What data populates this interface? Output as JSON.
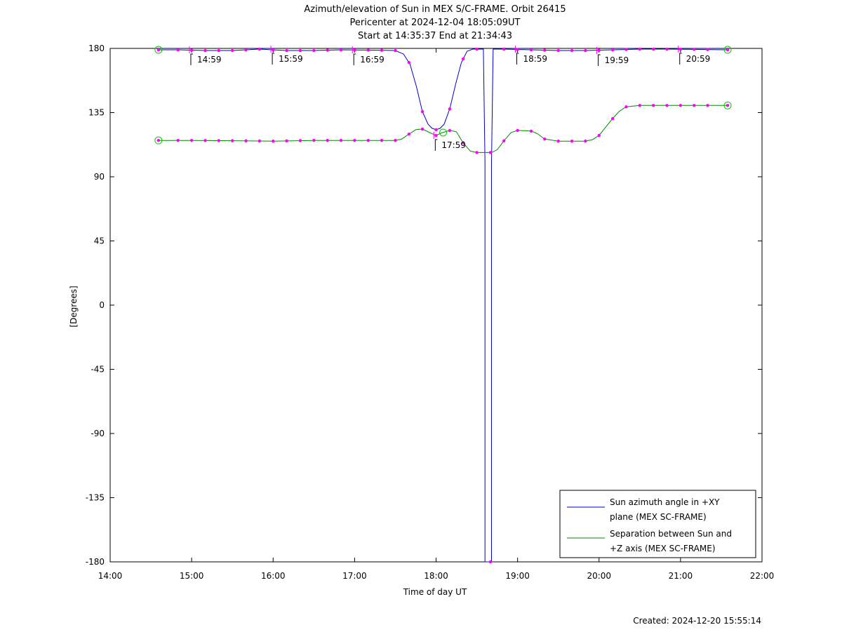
{
  "chart_data": {
    "type": "line",
    "title_lines": [
      "Azimuth/elevation of Sun in MEX S/C-FRAME.  Orbit 26415",
      "Pericenter at 2024-12-04 18:05:09UT",
      "Start at 14:35:37 End at 21:34:43"
    ],
    "xlabel": "Time of day UT",
    "ylabel": "[Degrees]",
    "xlim": [
      14.0,
      22.0
    ],
    "ylim": [
      -180,
      180
    ],
    "x_ticks": [
      {
        "v": 14,
        "label": "14:00"
      },
      {
        "v": 15,
        "label": "15:00"
      },
      {
        "v": 16,
        "label": "16:00"
      },
      {
        "v": 17,
        "label": "17:00"
      },
      {
        "v": 18,
        "label": "18:00"
      },
      {
        "v": 19,
        "label": "19:00"
      },
      {
        "v": 20,
        "label": "20:00"
      },
      {
        "v": 21,
        "label": "21:00"
      },
      {
        "v": 22,
        "label": "22:00"
      }
    ],
    "y_ticks": [
      {
        "v": 180,
        "label": "180"
      },
      {
        "v": 135,
        "label": "135"
      },
      {
        "v": 90,
        "label": "90"
      },
      {
        "v": 45,
        "label": "45"
      },
      {
        "v": 0,
        "label": "0"
      },
      {
        "v": -45,
        "label": "-45"
      },
      {
        "v": -90,
        "label": "-90"
      },
      {
        "v": -135,
        "label": "-135"
      },
      {
        "v": -180,
        "label": "-180"
      }
    ],
    "legend_position": "bottom-right",
    "series": [
      {
        "name": "Sun azimuth angle in +XY plane (MEX SC-FRAME)",
        "legend_lines": [
          "Sun azimuth angle in +XY",
          "plane (MEX SC-FRAME)"
        ],
        "color": "#0000cc",
        "points": [
          [
            14.593,
            179
          ],
          [
            14.83,
            179
          ],
          [
            15.17,
            178.5
          ],
          [
            15.5,
            178.5
          ],
          [
            15.83,
            179.5
          ],
          [
            16.17,
            178.5
          ],
          [
            16.5,
            178.5
          ],
          [
            16.83,
            179
          ],
          [
            17.17,
            178.8
          ],
          [
            17.5,
            178.5
          ],
          [
            17.6,
            176
          ],
          [
            17.68,
            169
          ],
          [
            17.76,
            153
          ],
          [
            17.83,
            136
          ],
          [
            17.9,
            127
          ],
          [
            17.95,
            124
          ],
          [
            18.0,
            123
          ],
          [
            18.05,
            124
          ],
          [
            18.1,
            127
          ],
          [
            18.17,
            138
          ],
          [
            18.24,
            155
          ],
          [
            18.31,
            170
          ],
          [
            18.38,
            178
          ],
          [
            18.45,
            179.5
          ],
          [
            18.58,
            179.5
          ],
          [
            18.6,
            100
          ],
          [
            18.6,
            -180
          ],
          [
            18.68,
            -180
          ],
          [
            18.68,
            100
          ],
          [
            18.7,
            179.5
          ],
          [
            18.83,
            179.5
          ],
          [
            19.17,
            179
          ],
          [
            19.5,
            178.5
          ],
          [
            19.83,
            178.5
          ],
          [
            20.17,
            179
          ],
          [
            20.5,
            179.5
          ],
          [
            20.83,
            179.5
          ],
          [
            21.17,
            179.3
          ],
          [
            21.578,
            179
          ]
        ]
      },
      {
        "name": "Separation between Sun and +Z axis (MEX SC-FRAME)",
        "legend_lines": [
          "Separation between Sun and",
          "+Z axis (MEX SC-FRAME)"
        ],
        "color": "#008800",
        "points": [
          [
            14.593,
            115.5
          ],
          [
            15.0,
            115.5
          ],
          [
            15.5,
            115.3
          ],
          [
            16.0,
            115
          ],
          [
            16.5,
            115.5
          ],
          [
            17.0,
            115.5
          ],
          [
            17.5,
            115.5
          ],
          [
            17.58,
            116.5
          ],
          [
            17.67,
            120
          ],
          [
            17.75,
            123
          ],
          [
            17.83,
            123.5
          ],
          [
            17.92,
            121
          ],
          [
            18.0,
            119
          ],
          [
            18.08,
            121
          ],
          [
            18.17,
            122.5
          ],
          [
            18.25,
            121.5
          ],
          [
            18.33,
            114
          ],
          [
            18.42,
            108
          ],
          [
            18.5,
            107
          ],
          [
            18.58,
            107
          ],
          [
            18.68,
            107
          ],
          [
            18.75,
            109
          ],
          [
            18.83,
            115
          ],
          [
            18.92,
            121
          ],
          [
            19.0,
            122.5
          ],
          [
            19.17,
            122
          ],
          [
            19.25,
            120
          ],
          [
            19.33,
            116.5
          ],
          [
            19.5,
            115
          ],
          [
            19.83,
            115
          ],
          [
            19.92,
            116
          ],
          [
            20.0,
            119
          ],
          [
            20.17,
            131
          ],
          [
            20.25,
            136
          ],
          [
            20.33,
            139
          ],
          [
            20.5,
            140
          ],
          [
            21.0,
            140
          ],
          [
            21.578,
            140
          ]
        ]
      }
    ],
    "markers": {
      "color": "#ff00ff",
      "azimuth_x": [
        14.833,
        15.0,
        15.167,
        15.333,
        15.5,
        15.667,
        15.833,
        16.0,
        16.167,
        16.333,
        16.5,
        16.667,
        16.833,
        17.0,
        17.167,
        17.333,
        17.5,
        17.667,
        17.833,
        18.0,
        18.167,
        18.333,
        18.5,
        18.667,
        18.833,
        19.0,
        19.167,
        19.333,
        19.5,
        19.667,
        19.833,
        20.0,
        20.167,
        20.333,
        20.5,
        20.667,
        20.833,
        21.0,
        21.167,
        21.333
      ],
      "separation_x": [
        14.833,
        15.0,
        15.167,
        15.333,
        15.5,
        15.667,
        15.833,
        16.0,
        16.167,
        16.333,
        16.5,
        16.667,
        16.833,
        17.0,
        17.167,
        17.333,
        17.5,
        17.667,
        17.833,
        18.0,
        18.167,
        18.333,
        18.5,
        18.667,
        18.833,
        19.0,
        19.167,
        19.333,
        19.5,
        19.667,
        19.833,
        20.0,
        20.167,
        20.333,
        20.5,
        20.667,
        20.833,
        21.0,
        21.167,
        21.333
      ],
      "start_end_circles": {
        "color": "#00cc00",
        "x": [
          14.593,
          21.578
        ]
      },
      "pericenter_circle": {
        "x": 18.086,
        "y": 121
      }
    },
    "time_labels": [
      {
        "x": 14.99,
        "y": 179,
        "label": "14:59"
      },
      {
        "x": 15.99,
        "y": 179.5,
        "label": "15:59"
      },
      {
        "x": 16.99,
        "y": 179,
        "label": "16:59"
      },
      {
        "x": 17.99,
        "y": 119,
        "label": "17:59"
      },
      {
        "x": 18.99,
        "y": 179.5,
        "label": "18:59"
      },
      {
        "x": 19.99,
        "y": 178.5,
        "label": "19:59"
      },
      {
        "x": 20.99,
        "y": 179.5,
        "label": "20:59"
      }
    ]
  },
  "footer": {
    "created": "Created: 2024-12-20 15:55:14"
  }
}
